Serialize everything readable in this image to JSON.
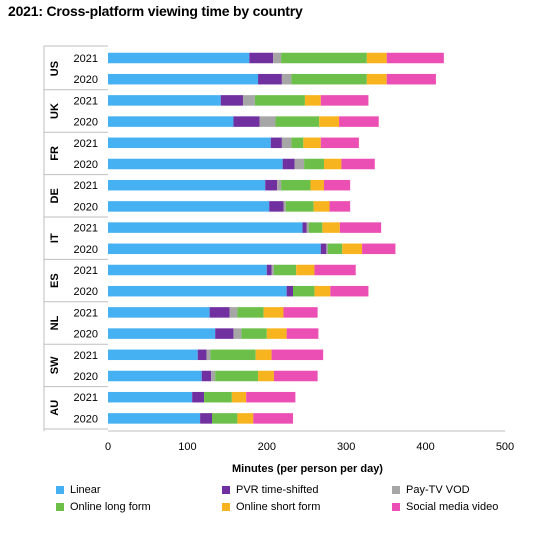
{
  "chart_data": {
    "type": "bar",
    "orientation": "horizontal",
    "stacked": true,
    "title": "2021: Cross-platform viewing time by country",
    "xlabel": "Minutes (per person per day)",
    "xlim": [
      0,
      500
    ],
    "xticks": [
      0,
      100,
      200,
      300,
      400,
      500
    ],
    "grid": false,
    "legend_position": "bottom",
    "groups": [
      {
        "country": "US",
        "years": [
          "2021",
          "2020"
        ]
      },
      {
        "country": "UK",
        "years": [
          "2021",
          "2020"
        ]
      },
      {
        "country": "FR",
        "years": [
          "2021",
          "2020"
        ]
      },
      {
        "country": "DE",
        "years": [
          "2021",
          "2020"
        ]
      },
      {
        "country": "IT",
        "years": [
          "2021",
          "2020"
        ]
      },
      {
        "country": "ES",
        "years": [
          "2021",
          "2020"
        ]
      },
      {
        "country": "NL",
        "years": [
          "2021",
          "2020"
        ]
      },
      {
        "country": "SW",
        "years": [
          "2021",
          "2020"
        ]
      },
      {
        "country": "AU",
        "years": [
          "2021",
          "2020"
        ]
      }
    ],
    "categories": [
      "US 2021",
      "US 2020",
      "UK 2021",
      "UK 2020",
      "FR 2021",
      "FR 2020",
      "DE 2021",
      "DE 2020",
      "IT 2021",
      "IT 2020",
      "ES 2021",
      "ES 2020",
      "NL 2021",
      "NL 2020",
      "SW 2021",
      "SW 2020",
      "AU 2021",
      "AU 2020"
    ],
    "series": [
      {
        "name": "Linear",
        "color": "#45B0F2",
        "values": [
          178,
          189,
          142,
          158,
          205,
          220,
          198,
          203,
          245,
          268,
          200,
          225,
          128,
          135,
          113,
          118,
          106,
          116
        ]
      },
      {
        "name": "PVR time-shifted",
        "color": "#7030A0",
        "values": [
          30,
          30,
          28,
          33,
          14,
          15,
          15,
          18,
          5,
          7,
          6,
          8,
          25,
          23,
          11,
          12,
          15,
          15
        ]
      },
      {
        "name": "Pay-TV VOD",
        "color": "#A6A6A6",
        "values": [
          10,
          12,
          15,
          20,
          12,
          12,
          5,
          3,
          3,
          2,
          3,
          0,
          10,
          10,
          5,
          5,
          0,
          0
        ]
      },
      {
        "name": "Online long form",
        "color": "#6CC04A",
        "values": [
          108,
          95,
          63,
          55,
          15,
          25,
          37,
          35,
          17,
          18,
          28,
          27,
          33,
          32,
          57,
          54,
          35,
          32
        ]
      },
      {
        "name": "Online short form",
        "color": "#F7B41E",
        "values": [
          25,
          25,
          20,
          25,
          22,
          22,
          17,
          20,
          22,
          25,
          23,
          20,
          25,
          25,
          20,
          20,
          18,
          20
        ]
      },
      {
        "name": "Social media video",
        "color": "#EC4FB4",
        "values": [
          72,
          62,
          60,
          50,
          48,
          42,
          33,
          26,
          52,
          42,
          52,
          48,
          43,
          40,
          65,
          55,
          62,
          50
        ]
      }
    ]
  }
}
